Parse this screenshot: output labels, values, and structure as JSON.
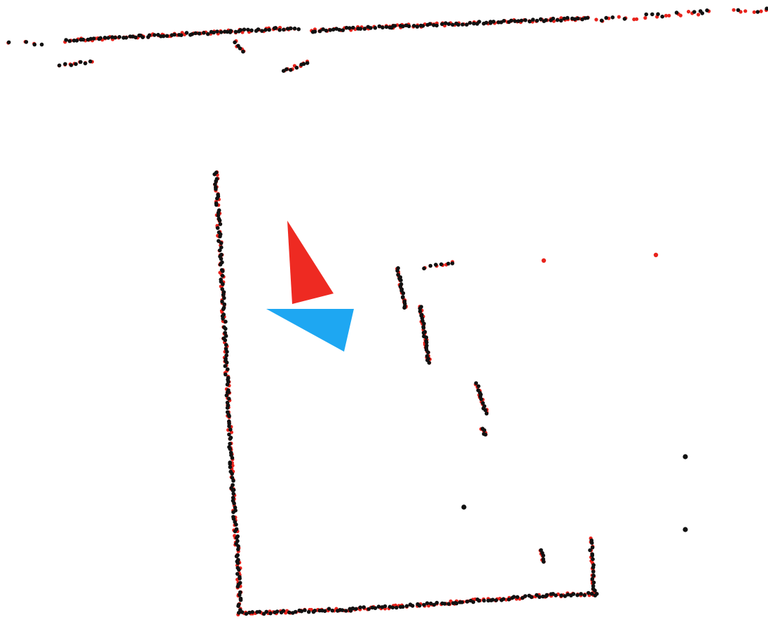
{
  "scan_view": {
    "colors": {
      "background": "#ffffff",
      "scan_a": "#e8231c",
      "scan_b": "#111111",
      "pose_a": "#ee2a22",
      "pose_b": "#1ea7f2"
    },
    "layers": [
      {
        "id": "scan-a",
        "color_key": "scan_a"
      },
      {
        "id": "scan-b",
        "color_key": "scan_b"
      }
    ],
    "pose_markers": [
      {
        "id": "pose-a",
        "color_key": "pose_a"
      },
      {
        "id": "pose-b",
        "color_key": "pose_b"
      }
    ]
  }
}
